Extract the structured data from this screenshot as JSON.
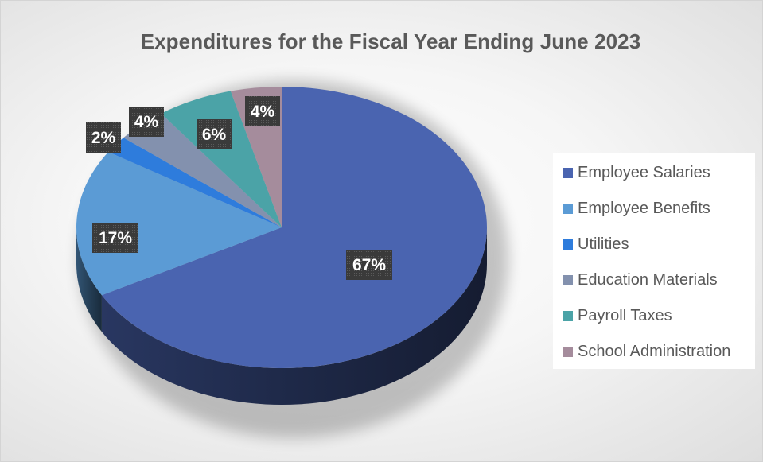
{
  "chart_data": {
    "type": "pie",
    "title": "Expenditures for the Fiscal Year Ending June 2023",
    "categories": [
      "Employee Salaries",
      "Employee Benefits",
      "Utilities",
      "Education Materials",
      "Payroll Taxes",
      "School Administration"
    ],
    "values": [
      67,
      17,
      2,
      4,
      6,
      4
    ],
    "data_labels": [
      "67%",
      "17%",
      "2%",
      "4%",
      "6%",
      "4%"
    ],
    "colors": [
      "#4A64B0",
      "#5B9BD5",
      "#2E7CDC",
      "#8391AE",
      "#4BA3A7",
      "#A58C9C"
    ],
    "legend_position": "right",
    "style": "3d-pie",
    "grid": false
  }
}
